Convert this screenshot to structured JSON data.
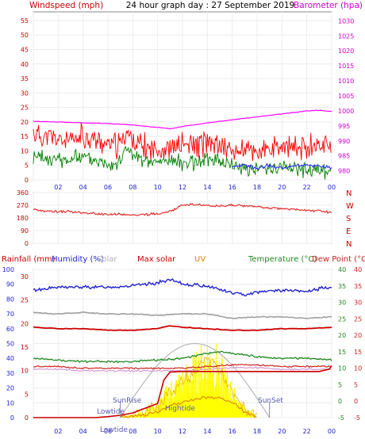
{
  "header": {
    "left": "Windspeed (mph)",
    "center": "24 hour graph day : 27 September 2019",
    "right": "Barometer (hpa)"
  },
  "compass": [
    "N",
    "W",
    "S",
    "E",
    "N"
  ],
  "lower_labels": {
    "rainfall": "Rainfall (mm)",
    "humidity": "Humidity (%)",
    "solar": "Solar",
    "max_solar": "Max solar",
    "uv": "UV",
    "temperature": "Temperature (°C)",
    "dew_point": "Dew Point (°C)"
  },
  "annotations": {
    "lowtide_1": "Lowtide",
    "lowtide_2": "Lowtide",
    "hightide": "Hightide",
    "sunrise": "SunRise",
    "sunset": "SunSet"
  },
  "colors": {
    "wind": "#ff0000",
    "avg_wind": "#008000",
    "dir_wind": "#2020ff",
    "barometer": "#ff00ff",
    "direction": "#e03030",
    "rain": "#cc0000",
    "humidity": "#2222cc",
    "solar_fill": "#ffff00",
    "solar_line": "#e8b800",
    "max_solar": "#cc0000",
    "uv": "#e08800",
    "temperature": "#228822",
    "dew_point": "#cc2222",
    "grey": "#a0a0a0"
  },
  "chart_data": [
    {
      "type": "line",
      "title": "24 hour graph day : 27 September 2019",
      "xlabel": "",
      "x_ticks": [
        "02",
        "04",
        "06",
        "08",
        "10",
        "12",
        "14",
        "16",
        "18",
        "20",
        "22",
        "00"
      ],
      "y_left_label": "Windspeed (mph)",
      "y_left_ticks": [
        0,
        5,
        10,
        15,
        20,
        25,
        30,
        35,
        40,
        45,
        50,
        55
      ],
      "y_left_lim": [
        0,
        58
      ],
      "y_right_label": "Barometer (hpa)",
      "y_right_ticks": [
        980,
        985,
        990,
        995,
        1000,
        1005,
        1010,
        1015,
        1020,
        1025,
        1030
      ],
      "y_right_lim": [
        977,
        1033
      ],
      "series": [
        {
          "name": "Windspeed (mph)",
          "axis": "left",
          "x": [
            0,
            1,
            2,
            3,
            4,
            5,
            6,
            7,
            7.5,
            8,
            9,
            10,
            11,
            12,
            13,
            14,
            15,
            16,
            17,
            18,
            19,
            20,
            21,
            22,
            23,
            24
          ],
          "y": [
            16,
            15,
            14,
            13,
            15,
            14,
            12,
            12,
            17,
            13,
            11,
            11,
            11,
            12,
            12,
            13,
            12,
            10,
            10,
            10,
            10,
            11,
            11,
            12,
            12,
            13
          ]
        },
        {
          "name": "",
          "axis": "left",
          "x": [
            0,
            1,
            2,
            3,
            4,
            5,
            6,
            7,
            7.5,
            8,
            9,
            10,
            11,
            12,
            13,
            14,
            15,
            16,
            17,
            18,
            19,
            20,
            21,
            22,
            23,
            24
          ],
          "y": [
            8,
            7,
            7,
            7,
            8,
            7,
            6,
            6,
            12,
            8,
            6,
            6,
            7,
            6,
            6,
            7,
            7,
            5,
            4,
            4,
            4,
            5,
            4,
            3,
            3,
            2
          ]
        },
        {
          "name": "",
          "axis": "left",
          "x": [
            16,
            17,
            18,
            19,
            20,
            21,
            22,
            23,
            24
          ],
          "y": [
            4,
            5,
            4,
            5,
            4,
            5,
            5,
            5,
            4
          ]
        },
        {
          "name": "Barometer (hpa)",
          "axis": "right",
          "x": [
            0,
            2,
            4,
            6,
            8,
            10,
            11,
            12,
            14,
            16,
            18,
            20,
            21,
            22,
            23,
            24
          ],
          "y": [
            996.5,
            996.3,
            996,
            995.8,
            995.3,
            994.5,
            994,
            994.8,
            996,
            997,
            998,
            999,
            999.5,
            1000,
            1000.2,
            999.8
          ]
        }
      ]
    },
    {
      "type": "line",
      "ylabel": "",
      "y_ticks": [
        0,
        90,
        180,
        270,
        360
      ],
      "y_lim": [
        0,
        360
      ],
      "series": [
        {
          "name": "",
          "x": [
            0,
            1,
            2,
            3,
            4,
            5,
            6,
            7,
            8,
            9,
            10,
            11,
            12,
            13,
            14,
            15,
            16,
            17,
            18,
            19,
            20,
            21,
            22,
            23,
            24
          ],
          "y": [
            240,
            230,
            225,
            225,
            215,
            210,
            205,
            205,
            200,
            205,
            210,
            225,
            270,
            275,
            265,
            260,
            270,
            265,
            260,
            250,
            245,
            240,
            235,
            230,
            215
          ]
        }
      ]
    },
    {
      "type": "line",
      "x_ticks": [
        "02",
        "04",
        "06",
        "08",
        "10",
        "12",
        "14",
        "16",
        "18",
        "20",
        "22",
        "00"
      ],
      "y_rain_ticks": [
        0,
        5,
        10,
        15,
        20,
        25,
        30
      ],
      "y_humidity_ticks": [
        0,
        10,
        20,
        30,
        40,
        50,
        60,
        70,
        80,
        90,
        100
      ],
      "y_temp_ticks": [
        -5,
        0,
        5,
        10,
        15,
        20,
        25,
        30,
        35,
        40
      ],
      "series": [
        {
          "name": "Humidity (%)",
          "axis": "humidity",
          "x": [
            0,
            2,
            4,
            6,
            8,
            10,
            11,
            12,
            14,
            16,
            17,
            18,
            20,
            22,
            23,
            24
          ],
          "y": [
            86,
            88,
            88,
            88,
            89,
            91,
            93,
            90,
            89,
            84,
            83,
            85,
            86,
            85,
            87,
            88
          ]
        },
        {
          "name": "",
          "axis": "humidity",
          "x": [
            0,
            2,
            4,
            6,
            8,
            10,
            12,
            14,
            16,
            18,
            20,
            22,
            24
          ],
          "y": [
            71,
            70,
            71,
            70,
            70,
            69,
            70,
            70,
            67,
            68,
            68,
            67,
            68
          ]
        },
        {
          "name": "Max solar",
          "axis": "humidity",
          "x": [
            0,
            2,
            4,
            6,
            8,
            10,
            11,
            12,
            14,
            16,
            18,
            20,
            22,
            24
          ],
          "y": [
            61,
            60,
            60,
            59,
            59,
            60,
            62,
            61,
            60,
            59,
            59,
            60,
            60,
            61
          ]
        },
        {
          "name": "Temperature (°C)",
          "axis": "temperature",
          "x": [
            0,
            2,
            4,
            6,
            8,
            10,
            12,
            14,
            15,
            16,
            18,
            20,
            22,
            24
          ],
          "y": [
            13,
            12.5,
            12,
            12,
            12,
            12.5,
            13,
            14.5,
            15,
            14.5,
            13.5,
            13,
            13,
            12.5
          ]
        },
        {
          "name": "Dew Point (°C)",
          "axis": "temperature",
          "x": [
            0,
            2,
            4,
            6,
            8,
            10,
            12,
            14,
            16,
            18,
            20,
            22,
            24
          ],
          "y": [
            10.5,
            10.5,
            10,
            10,
            10,
            10,
            10,
            10.5,
            11,
            11,
            10.5,
            10.5,
            10.5
          ]
        },
        {
          "name": "Rainfall (mm)",
          "axis": "rain",
          "x": [
            0,
            5,
            6,
            7,
            8,
            9,
            10,
            10.5,
            11,
            12,
            16,
            20,
            23,
            23.8,
            24
          ],
          "y": [
            0,
            0,
            0.2,
            0.5,
            1,
            2,
            3,
            8,
            9.7,
            9.8,
            9.8,
            9.8,
            9.8,
            10.3,
            11
          ]
        },
        {
          "name": "Solar",
          "axis": "humidity",
          "x": [
            7,
            8,
            9,
            10,
            11,
            12,
            13,
            14,
            14.5,
            15,
            15.5,
            16,
            17,
            18
          ],
          "y": [
            0,
            2,
            4,
            8,
            18,
            24,
            30,
            40,
            38,
            32,
            24,
            16,
            6,
            0
          ]
        },
        {
          "name": "UV",
          "axis": "humidity",
          "x": [
            7,
            8,
            9,
            10,
            11,
            12,
            13,
            14,
            15,
            16,
            17,
            18
          ],
          "y": [
            0,
            1,
            2,
            4,
            8,
            10,
            12,
            14,
            13,
            10,
            4,
            0
          ]
        }
      ]
    }
  ]
}
